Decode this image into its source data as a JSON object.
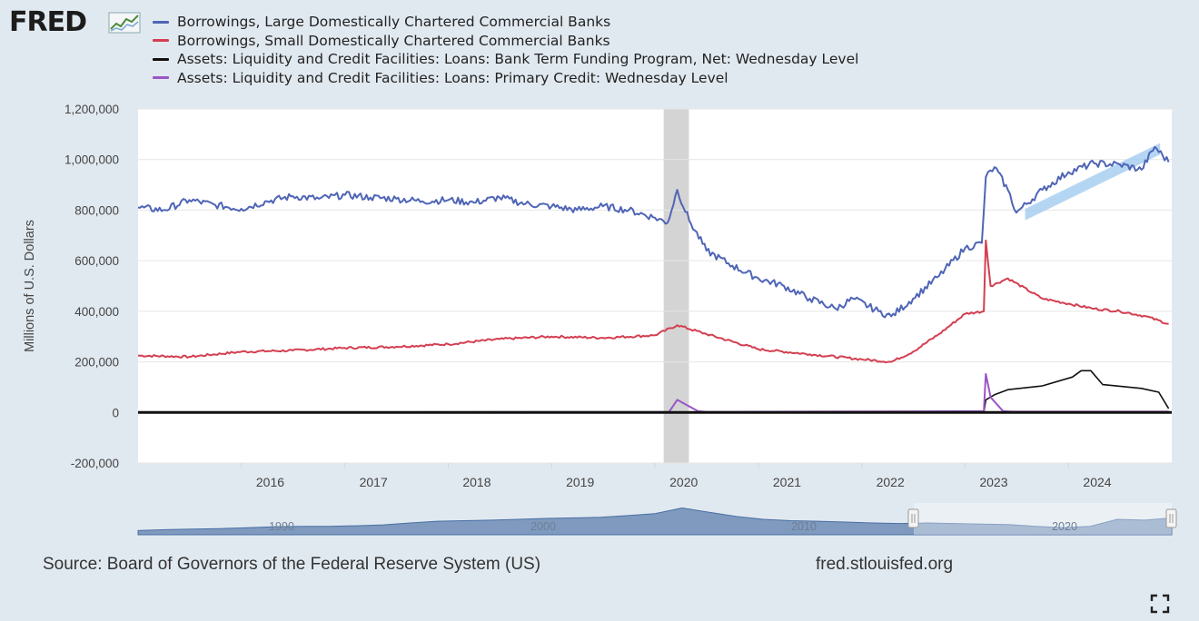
{
  "brand": {
    "logo_text": "FRED"
  },
  "source_text": "Source: Board of Governors of the Federal Reserve System (US)",
  "site_text": "fred.stlouisfed.org",
  "icons": {
    "fullscreen": "fullscreen-icon",
    "logo": "fred-chart-logo-icon"
  },
  "colors": {
    "background": "#e1e9f0",
    "plot": "#ffffff",
    "recession": "#d4d4d4",
    "navigator": "#5d7fae",
    "trend": "#9cc8ef"
  },
  "chart_data": {
    "type": "line",
    "title": "",
    "ylabel": "Millions of U.S. Dollars",
    "xlabel": "",
    "ylim": [
      -200000,
      1200000
    ],
    "xlim": [
      "2015-01-01",
      "2024-12-31"
    ],
    "yticks": [
      -200000,
      0,
      200000,
      400000,
      600000,
      800000,
      1000000,
      1200000
    ],
    "ytick_labels": [
      "-200,000",
      "0",
      "200,000",
      "400,000",
      "600,000",
      "800,000",
      "1,000,000",
      "1,200,000"
    ],
    "xtick_labels": [
      "2016",
      "2017",
      "2018",
      "2019",
      "2020",
      "2021",
      "2022",
      "2023",
      "2024"
    ],
    "grid": true,
    "legend_position": "top",
    "recession": {
      "start": "2020-02-01",
      "end": "2020-04-30"
    },
    "navigator_labels": [
      "1990",
      "2000",
      "2010",
      "2020"
    ],
    "series": [
      {
        "name": "Borrowings, Large Domestically Chartered Commercial Banks",
        "color": "#4f65b6",
        "points": [
          [
            "2015-01-01",
            810000
          ],
          [
            "2015-04-01",
            800000
          ],
          [
            "2015-07-01",
            840000
          ],
          [
            "2015-10-01",
            820000
          ],
          [
            "2016-01-01",
            805000
          ],
          [
            "2016-04-01",
            835000
          ],
          [
            "2016-07-01",
            855000
          ],
          [
            "2016-10-01",
            845000
          ],
          [
            "2017-01-01",
            860000
          ],
          [
            "2017-04-01",
            850000
          ],
          [
            "2017-07-01",
            845000
          ],
          [
            "2017-10-01",
            835000
          ],
          [
            "2018-01-01",
            840000
          ],
          [
            "2018-04-01",
            830000
          ],
          [
            "2018-07-01",
            850000
          ],
          [
            "2018-10-01",
            825000
          ],
          [
            "2019-01-01",
            815000
          ],
          [
            "2019-04-01",
            800000
          ],
          [
            "2019-07-01",
            815000
          ],
          [
            "2019-10-01",
            800000
          ],
          [
            "2020-01-01",
            770000
          ],
          [
            "2020-02-15",
            750000
          ],
          [
            "2020-03-20",
            880000
          ],
          [
            "2020-05-01",
            760000
          ],
          [
            "2020-07-01",
            640000
          ],
          [
            "2020-10-01",
            580000
          ],
          [
            "2021-01-01",
            530000
          ],
          [
            "2021-04-01",
            500000
          ],
          [
            "2021-07-01",
            450000
          ],
          [
            "2021-10-01",
            410000
          ],
          [
            "2021-12-01",
            450000
          ],
          [
            "2022-03-01",
            400000
          ],
          [
            "2022-04-15",
            380000
          ],
          [
            "2022-07-01",
            450000
          ],
          [
            "2022-10-01",
            540000
          ],
          [
            "2023-01-01",
            650000
          ],
          [
            "2023-03-01",
            670000
          ],
          [
            "2023-03-15",
            930000
          ],
          [
            "2023-04-15",
            970000
          ],
          [
            "2023-06-01",
            880000
          ],
          [
            "2023-07-01",
            790000
          ],
          [
            "2023-10-01",
            880000
          ],
          [
            "2024-01-01",
            950000
          ],
          [
            "2024-04-01",
            985000
          ],
          [
            "2024-07-01",
            980000
          ],
          [
            "2024-09-15",
            960000
          ],
          [
            "2024-11-01",
            1050000
          ],
          [
            "2024-12-20",
            990000
          ]
        ]
      },
      {
        "name": "Borrowings, Small Domestically Chartered Commercial Banks",
        "color": "#d43f51",
        "points": [
          [
            "2015-01-01",
            225000
          ],
          [
            "2015-07-01",
            220000
          ],
          [
            "2016-01-01",
            240000
          ],
          [
            "2016-07-01",
            245000
          ],
          [
            "2017-01-01",
            255000
          ],
          [
            "2017-07-01",
            260000
          ],
          [
            "2018-01-01",
            270000
          ],
          [
            "2018-07-01",
            290000
          ],
          [
            "2019-01-01",
            300000
          ],
          [
            "2019-07-01",
            295000
          ],
          [
            "2020-01-01",
            305000
          ],
          [
            "2020-03-20",
            345000
          ],
          [
            "2020-07-01",
            310000
          ],
          [
            "2021-01-01",
            250000
          ],
          [
            "2021-07-01",
            230000
          ],
          [
            "2022-01-01",
            210000
          ],
          [
            "2022-04-15",
            200000
          ],
          [
            "2022-07-01",
            240000
          ],
          [
            "2022-10-01",
            310000
          ],
          [
            "2023-01-01",
            390000
          ],
          [
            "2023-03-08",
            400000
          ],
          [
            "2023-03-15",
            680000
          ],
          [
            "2023-04-01",
            500000
          ],
          [
            "2023-06-01",
            530000
          ],
          [
            "2023-10-01",
            450000
          ],
          [
            "2024-01-01",
            430000
          ],
          [
            "2024-04-01",
            410000
          ],
          [
            "2024-07-01",
            400000
          ],
          [
            "2024-10-01",
            380000
          ],
          [
            "2024-12-20",
            350000
          ]
        ]
      },
      {
        "name": "Assets: Liquidity and Credit Facilities: Loans: Bank Term Funding Program, Net: Wednesday Level",
        "color": "#111111",
        "points": [
          [
            "2015-01-01",
            0
          ],
          [
            "2023-03-08",
            0
          ],
          [
            "2023-03-15",
            50000
          ],
          [
            "2023-04-15",
            70000
          ],
          [
            "2023-06-01",
            90000
          ],
          [
            "2023-10-01",
            105000
          ],
          [
            "2024-01-15",
            140000
          ],
          [
            "2024-02-15",
            165000
          ],
          [
            "2024-03-20",
            165000
          ],
          [
            "2024-05-01",
            110000
          ],
          [
            "2024-09-15",
            95000
          ],
          [
            "2024-11-15",
            80000
          ],
          [
            "2024-12-20",
            15000
          ]
        ]
      },
      {
        "name": "Assets: Liquidity and Credit Facilities: Loans: Primary Credit: Wednesday Level",
        "color": "#9a55c8",
        "points": [
          [
            "2015-01-01",
            0
          ],
          [
            "2020-02-20",
            2000
          ],
          [
            "2020-03-20",
            50000
          ],
          [
            "2020-06-01",
            5000
          ],
          [
            "2020-07-01",
            2000
          ],
          [
            "2023-03-08",
            5000
          ],
          [
            "2023-03-15",
            152000
          ],
          [
            "2023-04-01",
            60000
          ],
          [
            "2023-05-15",
            5000
          ],
          [
            "2023-06-15",
            3000
          ],
          [
            "2024-12-20",
            3000
          ]
        ]
      }
    ]
  }
}
